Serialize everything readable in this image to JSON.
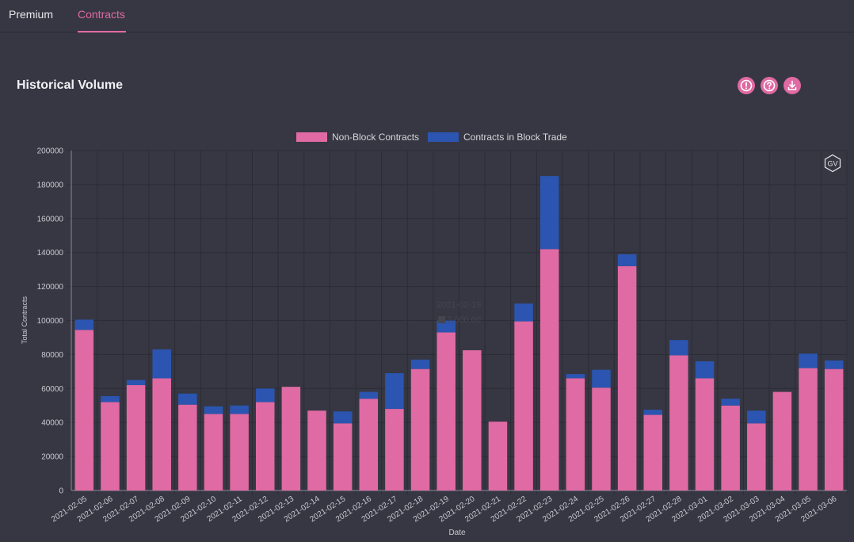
{
  "tabs": [
    {
      "label": "Premium",
      "active": false
    },
    {
      "label": "Contracts",
      "active": true
    }
  ],
  "panel": {
    "title": "Historical Volume",
    "actions": [
      {
        "name": "info-icon"
      },
      {
        "name": "help-icon"
      },
      {
        "name": "download-icon"
      }
    ],
    "logo_text": "GV"
  },
  "colors": {
    "non_block": "#e06aa3",
    "block": "#2b55b0",
    "accent": "#e06aa3"
  },
  "chart_data": {
    "type": "bar",
    "stacked": true,
    "xlabel": "Date",
    "ylabel": "Total Contracts",
    "ylim": [
      0,
      200000
    ],
    "yticks": [
      0,
      20000,
      40000,
      60000,
      80000,
      100000,
      120000,
      140000,
      160000,
      180000,
      200000
    ],
    "grid": true,
    "legend_position": "top",
    "categories": [
      "2021-02-05",
      "2021-02-06",
      "2021-02-07",
      "2021-02-08",
      "2021-02-09",
      "2021-02-10",
      "2021-02-11",
      "2021-02-12",
      "2021-02-13",
      "2021-02-14",
      "2021-02-15",
      "2021-02-16",
      "2021-02-17",
      "2021-02-18",
      "2021-02-19",
      "2021-02-20",
      "2021-02-21",
      "2021-02-22",
      "2021-02-23",
      "2021-02-24",
      "2021-02-25",
      "2021-02-26",
      "2021-02-27",
      "2021-02-28",
      "2021-03-01",
      "2021-03-02",
      "2021-03-03",
      "2021-03-04",
      "2021-03-05",
      "2021-03-06"
    ],
    "series": [
      {
        "name": "Non-Block Contracts",
        "values": [
          94500,
          52000,
          62000,
          66000,
          50500,
          45000,
          45000,
          52000,
          61000,
          47000,
          39500,
          54000,
          48000,
          71500,
          93000,
          82500,
          40500,
          99500,
          142000,
          66000,
          60500,
          132000,
          44500,
          79500,
          66000,
          50000,
          39500,
          58000,
          72000,
          71500
        ]
      },
      {
        "name": "Contracts in Block Trade",
        "values": [
          6000,
          3500,
          3000,
          17000,
          6500,
          4500,
          5000,
          8000,
          0,
          0,
          7000,
          4000,
          21000,
          5500,
          7000,
          0,
          0,
          10500,
          43000,
          2500,
          10500,
          7000,
          3000,
          9000,
          10000,
          4000,
          7500,
          0,
          8500,
          5000
        ]
      }
    ],
    "tooltip": {
      "label": "2021-02-19",
      "value": "7,000.00"
    }
  }
}
